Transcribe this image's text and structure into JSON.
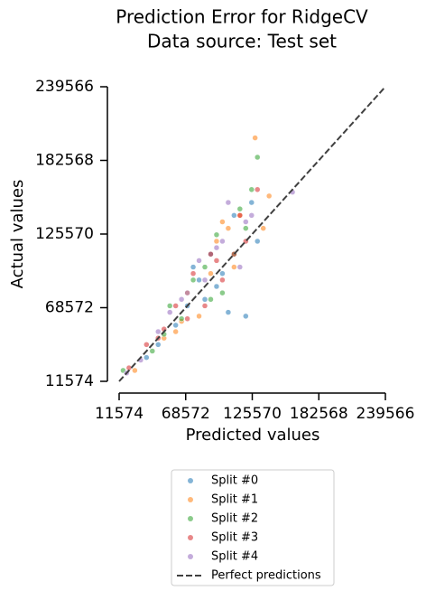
{
  "chart_data": {
    "type": "scatter",
    "title": "Prediction Error for RidgeCV",
    "subtitle": "Data source: Test set",
    "x_label": "Predicted values",
    "y_label": "Actual values",
    "xlim": [
      11574,
      239566
    ],
    "ylim": [
      11574,
      239566
    ],
    "xticks": [
      11574,
      68572,
      125570,
      182568,
      239566
    ],
    "yticks": [
      11574,
      68572,
      125570,
      182568,
      239566
    ],
    "legend_position": "bottom",
    "series": [
      {
        "name": "Split #0",
        "color": "#1f77b4",
        "x": [
          35000,
          60000,
          80000,
          95000,
          110000,
          120000,
          130000,
          70000,
          90000,
          100000,
          45000,
          85000,
          125000,
          105000,
          75000
        ],
        "values": [
          30000,
          55000,
          90000,
          85000,
          140000,
          62000,
          120000,
          70000,
          110000,
          95000,
          40000,
          75000,
          150000,
          65000,
          100000
        ]
      },
      {
        "name": "Split #1",
        "color": "#ff7f0e",
        "x": [
          25000,
          50000,
          65000,
          90000,
          105000,
          115000,
          128000,
          140000,
          70000,
          95000,
          80000,
          60000,
          110000,
          100000,
          135000
        ],
        "values": [
          20000,
          45000,
          58000,
          95000,
          130000,
          140000,
          200000,
          155000,
          80000,
          120000,
          62000,
          50000,
          100000,
          135000,
          130000
        ]
      },
      {
        "name": "Split #2",
        "color": "#2ca02c",
        "x": [
          15000,
          40000,
          55000,
          75000,
          95000,
          110000,
          130000,
          120000,
          85000,
          65000,
          100000,
          125000,
          50000,
          115000,
          90000
        ],
        "values": [
          20000,
          35000,
          70000,
          90000,
          125000,
          110000,
          185000,
          130000,
          100000,
          60000,
          80000,
          160000,
          48000,
          145000,
          75000
        ]
      },
      {
        "name": "Split #3",
        "color": "#d62728",
        "x": [
          20000,
          35000,
          50000,
          70000,
          85000,
          100000,
          115000,
          120000,
          130000,
          60000,
          75000,
          95000,
          110000,
          45000,
          90000
        ],
        "values": [
          22000,
          40000,
          52000,
          60000,
          70000,
          90000,
          140000,
          120000,
          160000,
          70000,
          95000,
          105000,
          110000,
          45000,
          110000
        ]
      },
      {
        "name": "Split #4",
        "color": "#9467bd",
        "x": [
          18000,
          30000,
          55000,
          70000,
          80000,
          95000,
          105000,
          120000,
          160000,
          65000,
          85000,
          100000,
          115000,
          45000,
          125000
        ],
        "values": [
          18000,
          28000,
          65000,
          80000,
          105000,
          115000,
          150000,
          135000,
          158000,
          75000,
          90000,
          120000,
          100000,
          50000,
          140000
        ]
      }
    ],
    "reference_line": {
      "name": "Perfect predictions",
      "color": "#404040",
      "x": [
        11574,
        239566
      ],
      "values": [
        11574,
        239566
      ]
    }
  }
}
